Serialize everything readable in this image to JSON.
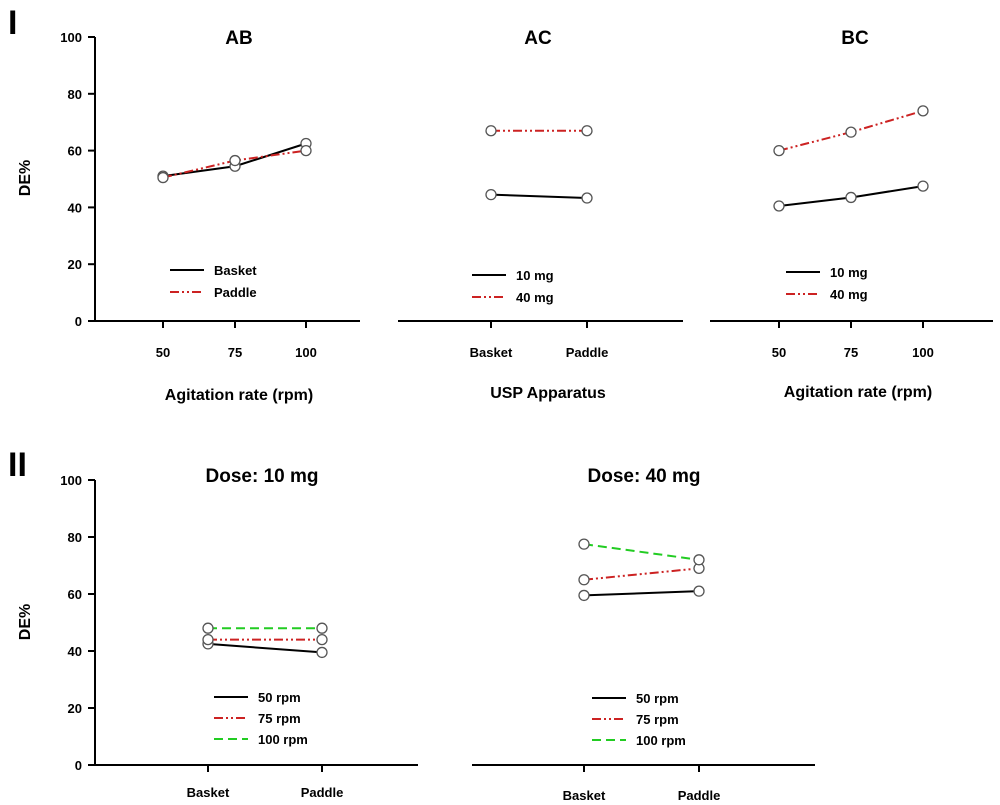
{
  "figure": {
    "panel_labels": [
      "I",
      "II"
    ],
    "y_axis_title": "DE%"
  },
  "colors": {
    "basket_10mg_50rpm": "#000000",
    "paddle_40mg_75rpm": "#cc2222",
    "rpm100": "#22cc22"
  },
  "chart_data": [
    {
      "type": "line",
      "title": "AB",
      "xlabel": "Agitation rate (rpm)",
      "ylabel": "DE%",
      "categories": [
        "50",
        "75",
        "100"
      ],
      "ylim": [
        0,
        100
      ],
      "yticks": [
        0,
        20,
        40,
        60,
        80,
        100
      ],
      "grid": false,
      "legend": "lower-left",
      "series": [
        {
          "name": "Basket",
          "style": "solid",
          "color": "#000000",
          "values": [
            51,
            54.5,
            62.5
          ]
        },
        {
          "name": "Paddle",
          "style": "dashdot",
          "color": "#cc2222",
          "values": [
            50.5,
            56.5,
            60
          ]
        }
      ]
    },
    {
      "type": "line",
      "title": "AC",
      "xlabel": "USP Apparatus",
      "ylabel": "",
      "categories": [
        "Basket",
        "Paddle"
      ],
      "ylim": [
        0,
        100
      ],
      "grid": false,
      "legend": "lower-left",
      "series": [
        {
          "name": "10 mg",
          "style": "solid",
          "color": "#000000",
          "values": [
            44.5,
            43.3
          ]
        },
        {
          "name": "40 mg",
          "style": "dashdot",
          "color": "#cc2222",
          "values": [
            67,
            67
          ]
        }
      ]
    },
    {
      "type": "line",
      "title": "BC",
      "xlabel": "Agitation rate (rpm)",
      "ylabel": "",
      "categories": [
        "50",
        "75",
        "100"
      ],
      "ylim": [
        0,
        100
      ],
      "grid": false,
      "legend": "lower-left",
      "series": [
        {
          "name": "10 mg",
          "style": "solid",
          "color": "#000000",
          "values": [
            40.5,
            43.5,
            47.5
          ]
        },
        {
          "name": "40 mg",
          "style": "dashdot",
          "color": "#cc2222",
          "values": [
            60,
            66.5,
            74
          ]
        }
      ]
    },
    {
      "type": "line",
      "title": "Dose: 10 mg",
      "xlabel": "",
      "ylabel": "DE%",
      "categories": [
        "Basket",
        "Paddle"
      ],
      "ylim": [
        0,
        100
      ],
      "yticks": [
        0,
        20,
        40,
        60,
        80,
        100
      ],
      "grid": false,
      "legend": "lower-center",
      "series": [
        {
          "name": "50 rpm",
          "style": "solid",
          "color": "#000000",
          "values": [
            42.5,
            39.5
          ]
        },
        {
          "name": "75 rpm",
          "style": "dashdot",
          "color": "#cc2222",
          "values": [
            44,
            44
          ]
        },
        {
          "name": "100 rpm",
          "style": "dashed",
          "color": "#22cc22",
          "values": [
            48,
            48
          ]
        }
      ]
    },
    {
      "type": "line",
      "title": "Dose: 40 mg",
      "xlabel": "",
      "ylabel": "",
      "categories": [
        "Basket",
        "Paddle"
      ],
      "ylim": [
        0,
        100
      ],
      "grid": false,
      "legend": "lower-center",
      "series": [
        {
          "name": "50 rpm",
          "style": "solid",
          "color": "#000000",
          "values": [
            59.5,
            61
          ]
        },
        {
          "name": "75 rpm",
          "style": "dashdot",
          "color": "#cc2222",
          "values": [
            65,
            69
          ]
        },
        {
          "name": "100 rpm",
          "style": "dashed",
          "color": "#22cc22",
          "values": [
            77.5,
            72
          ]
        }
      ]
    }
  ]
}
